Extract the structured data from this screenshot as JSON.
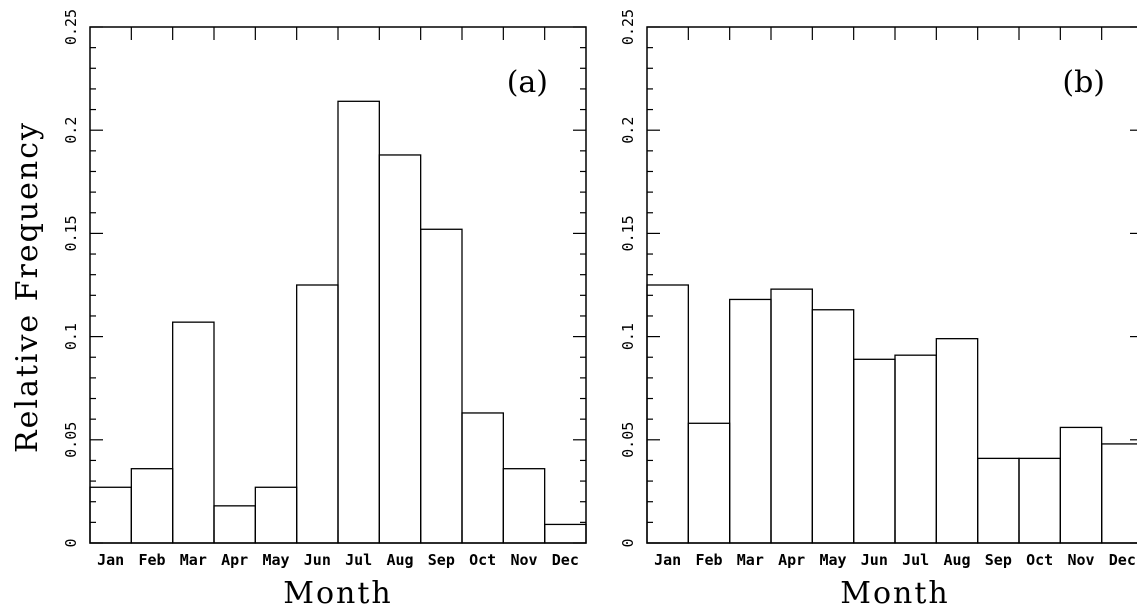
{
  "ylabel": "Relative Frequency",
  "chart_data": [
    {
      "type": "bar",
      "panel_label": "(a)",
      "xlabel": "Month",
      "ylabel": "Relative Frequency",
      "categories": [
        "Jan",
        "Feb",
        "Mar",
        "Apr",
        "May",
        "Jun",
        "Jul",
        "Aug",
        "Sep",
        "Oct",
        "Nov",
        "Dec"
      ],
      "values": [
        0.027,
        0.036,
        0.107,
        0.018,
        0.027,
        0.125,
        0.214,
        0.188,
        0.152,
        0.063,
        0.036,
        0.009
      ],
      "ylim": [
        0,
        0.25
      ],
      "yticks": [
        0,
        0.05,
        0.1,
        0.15,
        0.2,
        0.25
      ],
      "ytick_labels": [
        "0",
        "0.05",
        "0.1",
        "0.15",
        "0.2",
        "0.25"
      ],
      "grid": false
    },
    {
      "type": "bar",
      "panel_label": "(b)",
      "xlabel": "Month",
      "categories": [
        "Jan",
        "Feb",
        "Mar",
        "Apr",
        "May",
        "Jun",
        "Jul",
        "Aug",
        "Sep",
        "Oct",
        "Nov",
        "Dec"
      ],
      "values": [
        0.125,
        0.058,
        0.118,
        0.123,
        0.113,
        0.089,
        0.091,
        0.099,
        0.041,
        0.041,
        0.056,
        0.048
      ],
      "ylim": [
        0,
        0.25
      ],
      "yticks": [
        0,
        0.05,
        0.1,
        0.15,
        0.2,
        0.25
      ],
      "ytick_labels": [
        "0",
        "0.05",
        "0.1",
        "0.15",
        "0.2",
        "0.25"
      ],
      "grid": false
    }
  ]
}
